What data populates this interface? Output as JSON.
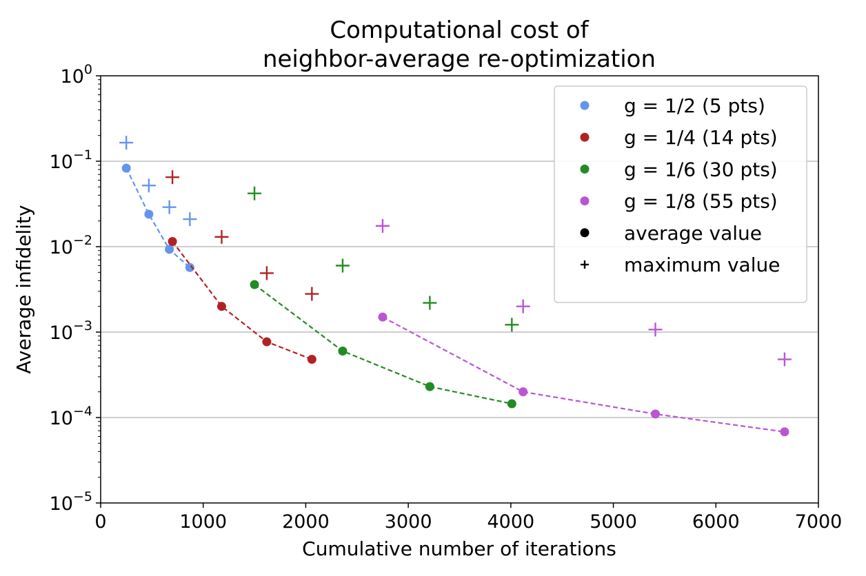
{
  "chart_data": {
    "type": "scatter",
    "title": "Computational cost of",
    "subtitle": "neighbor-average re-optimization",
    "xlabel": "Cumulative number of iterations",
    "ylabel": "Average infidelity",
    "xlim": [
      0,
      7000
    ],
    "ylim": [
      1e-05,
      1
    ],
    "yscale": "log",
    "grid": "y-major",
    "legend_position": "top-right",
    "x_ticks": [
      "0",
      "1000",
      "2000",
      "3000",
      "4000",
      "5000",
      "6000",
      "7000"
    ],
    "y_ticks": [
      {
        "base": "10",
        "exp": "0",
        "value": 1
      },
      {
        "base": "10",
        "exp": "−1",
        "value": 0.1
      },
      {
        "base": "10",
        "exp": "−2",
        "value": 0.01
      },
      {
        "base": "10",
        "exp": "−3",
        "value": 0.001
      },
      {
        "base": "10",
        "exp": "−4",
        "value": 0.0001
      },
      {
        "base": "10",
        "exp": "−5",
        "value": 1e-05
      }
    ],
    "series": [
      {
        "name": "g = 1/2 (5 pts)",
        "color": "#6495ED",
        "x": [
          250,
          470,
          670,
          870
        ],
        "average": [
          0.083,
          0.024,
          0.0093,
          0.0057
        ],
        "maximum": [
          0.165,
          0.052,
          0.029,
          0.021
        ]
      },
      {
        "name": "g = 1/4 (14 pts)",
        "color": "#B22222",
        "x": [
          700,
          1180,
          1620,
          2060
        ],
        "average": [
          0.0115,
          0.002,
          0.00077,
          0.00048
        ],
        "maximum": [
          0.065,
          0.013,
          0.0049,
          0.0028
        ]
      },
      {
        "name": "g = 1/6 (30 pts)",
        "color": "#228B22",
        "x": [
          1500,
          2360,
          3210,
          4010
        ],
        "average": [
          0.0036,
          0.0006,
          0.00023,
          0.000145
        ],
        "maximum": [
          0.042,
          0.006,
          0.0022,
          0.00122
        ]
      },
      {
        "name": "g = 1/8 (55 pts)",
        "color": "#BA55D3",
        "x": [
          2750,
          4120,
          5410,
          6670
        ],
        "average": [
          0.0015,
          0.0002,
          0.00011,
          6.8e-05
        ],
        "maximum": [
          0.0175,
          0.002,
          0.00107,
          0.00048
        ]
      }
    ],
    "marker_legend": [
      {
        "label": "average value",
        "marker": "circle",
        "color": "#000000"
      },
      {
        "label": "maximum value",
        "marker": "plus",
        "color": "#000000"
      }
    ]
  }
}
